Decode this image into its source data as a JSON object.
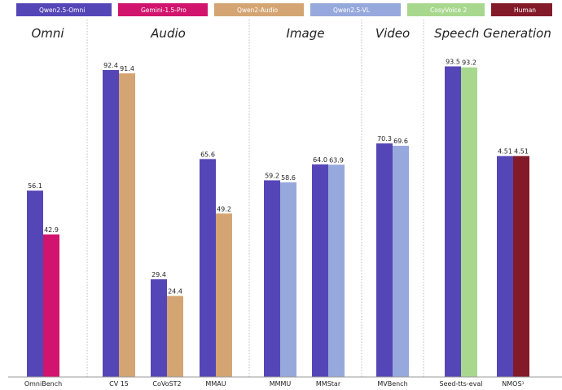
{
  "chart_data": {
    "type": "bar",
    "title": "",
    "ylim": [
      0,
      100
    ],
    "series": [
      {
        "name": "Qwen2.5-Omni",
        "color": "#5546b8"
      },
      {
        "name": "Gemini-1.5-Pro",
        "color": "#d1146d"
      },
      {
        "name": "Qwen2-Audio",
        "color": "#d4a572"
      },
      {
        "name": "Qwen2.5-VL",
        "color": "#97a9dc"
      },
      {
        "name": "CosyVoice 2",
        "color": "#a8d88e"
      },
      {
        "name": "Human",
        "color": "#831a2a"
      }
    ],
    "groups": [
      {
        "title": "Omni",
        "categories": [
          {
            "label": "OmniBench",
            "bars": [
              {
                "series": "Qwen2.5-Omni",
                "value": 56.1,
                "label": "56.1"
              },
              {
                "series": "Gemini-1.5-Pro",
                "value": 42.9,
                "label": "42.9"
              }
            ]
          }
        ]
      },
      {
        "title": "Audio",
        "categories": [
          {
            "label": "CV 15",
            "bars": [
              {
                "series": "Qwen2.5-Omni",
                "value": 92.4,
                "label": "92.4"
              },
              {
                "series": "Qwen2-Audio",
                "value": 91.4,
                "label": "91.4"
              }
            ]
          },
          {
            "label": "CoVoST2",
            "bars": [
              {
                "series": "Qwen2.5-Omni",
                "value": 29.4,
                "label": "29.4"
              },
              {
                "series": "Qwen2-Audio",
                "value": 24.4,
                "label": "24.4"
              }
            ]
          },
          {
            "label": "MMAU",
            "bars": [
              {
                "series": "Qwen2.5-Omni",
                "value": 65.6,
                "label": "65.6"
              },
              {
                "series": "Qwen2-Audio",
                "value": 49.2,
                "label": "49.2"
              }
            ]
          }
        ]
      },
      {
        "title": "Image",
        "categories": [
          {
            "label": "MMMU",
            "bars": [
              {
                "series": "Qwen2.5-Omni",
                "value": 59.2,
                "label": "59.2"
              },
              {
                "series": "Qwen2.5-VL",
                "value": 58.6,
                "label": "58.6"
              }
            ]
          },
          {
            "label": "MMStar",
            "bars": [
              {
                "series": "Qwen2.5-Omni",
                "value": 64.0,
                "label": "64.0"
              },
              {
                "series": "Qwen2.5-VL",
                "value": 63.9,
                "label": "63.9"
              }
            ]
          }
        ]
      },
      {
        "title": "Video",
        "categories": [
          {
            "label": "MVBench",
            "bars": [
              {
                "series": "Qwen2.5-Omni",
                "value": 70.3,
                "label": "70.3"
              },
              {
                "series": "Qwen2.5-VL",
                "value": 69.6,
                "label": "69.6"
              }
            ]
          }
        ]
      },
      {
        "title": "Speech Generation",
        "categories": [
          {
            "label": "Seed-tts-eval",
            "bars": [
              {
                "series": "Qwen2.5-Omni",
                "value": 93.5,
                "label": "93.5"
              },
              {
                "series": "CosyVoice 2",
                "value": 93.2,
                "label": "93.2"
              }
            ]
          },
          {
            "label": "NMOS¹",
            "bars": [
              {
                "series": "Qwen2.5-Omni",
                "value": 4.51,
                "plot_value": 66.5,
                "label": "4.51"
              },
              {
                "series": "Human",
                "value": 4.51,
                "plot_value": 66.5,
                "label": "4.51"
              }
            ]
          }
        ]
      }
    ]
  }
}
